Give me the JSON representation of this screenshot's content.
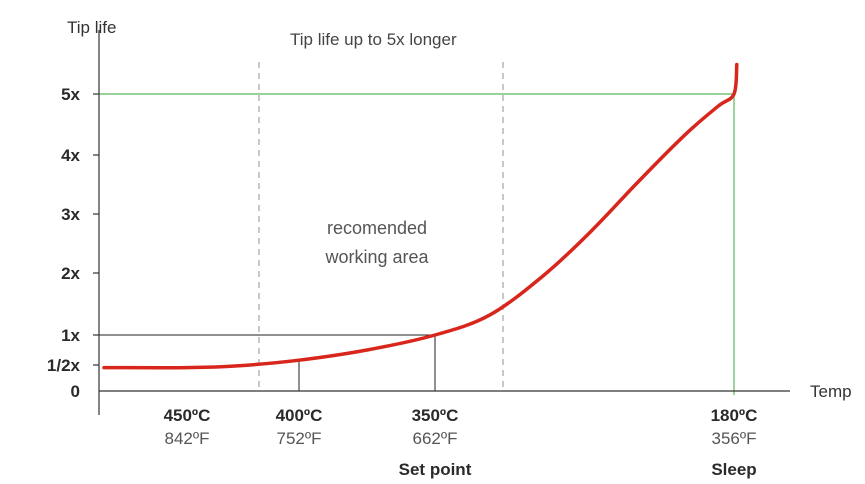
{
  "chart_data": {
    "type": "line",
    "ylabel": "Tip life",
    "xlabel": "Temp",
    "title": "Tip life up to 5x longer",
    "region_label": [
      "recomended",
      "working area"
    ],
    "y_ticks": [
      {
        "label": "5x",
        "value": 5
      },
      {
        "label": "4x",
        "value": 4
      },
      {
        "label": "3x",
        "value": 3
      },
      {
        "label": "2x",
        "value": 2
      },
      {
        "label": "1x",
        "value": 1
      },
      {
        "label": "1/2x",
        "value": 0.5
      },
      {
        "label": "0",
        "value": 0
      }
    ],
    "x_ticks": [
      {
        "c": "450ºC",
        "f": "842ºF",
        "note": "",
        "temp_c": 450
      },
      {
        "c": "400ºC",
        "f": "752ºF",
        "note": "",
        "temp_c": 400
      },
      {
        "c": "350ºC",
        "f": "662ºF",
        "note": "Set point",
        "temp_c": 350
      },
      {
        "c": "180ºC",
        "f": "356ºF",
        "note": "Sleep",
        "temp_c": 180
      }
    ],
    "series": [
      {
        "color": "#d9261c",
        "points": [
          {
            "temp_c": 460,
            "tip_life": 0.45
          },
          {
            "temp_c": 450,
            "tip_life": 0.45
          },
          {
            "temp_c": 430,
            "tip_life": 0.48
          },
          {
            "temp_c": 400,
            "tip_life": 0.58
          },
          {
            "temp_c": 375,
            "tip_life": 0.75
          },
          {
            "temp_c": 350,
            "tip_life": 1.0
          },
          {
            "temp_c": 330,
            "tip_life": 1.32
          },
          {
            "temp_c": 300,
            "tip_life": 1.95
          },
          {
            "temp_c": 270,
            "tip_life": 2.7
          },
          {
            "temp_c": 240,
            "tip_life": 3.55
          },
          {
            "temp_c": 210,
            "tip_life": 4.35
          },
          {
            "temp_c": 190,
            "tip_life": 4.8
          },
          {
            "temp_c": 180,
            "tip_life": 5.0
          },
          {
            "temp_c": 178,
            "tip_life": 5.5
          }
        ]
      }
    ],
    "working_area_c": [
      420,
      325
    ],
    "highlight_color": "#5cb85c"
  }
}
